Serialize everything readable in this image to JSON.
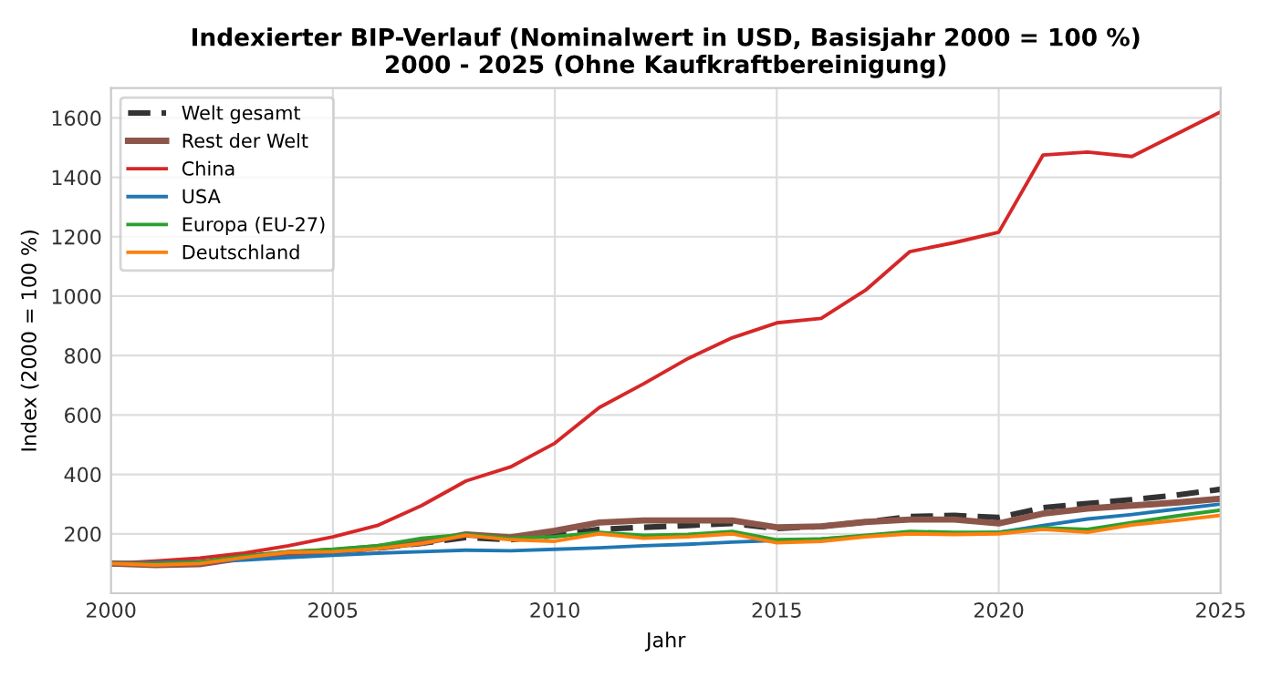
{
  "chart_data": {
    "type": "line",
    "title": "Indexierter BIP-Verlauf (Nominalwert in USD, Basisjahr 2000 = 100 %)\n2000 - 2025 (Ohne Kaufkraftbereinigung)",
    "xlabel": "Jahr",
    "ylabel": "Index (2000 = 100 %)",
    "x": [
      2000,
      2001,
      2002,
      2003,
      2004,
      2005,
      2006,
      2007,
      2008,
      2009,
      2010,
      2011,
      2012,
      2013,
      2014,
      2015,
      2016,
      2017,
      2018,
      2019,
      2020,
      2021,
      2022,
      2023,
      2024,
      2025
    ],
    "series": [
      {
        "name": "Welt gesamt",
        "color": "#333333",
        "line_style": "dashed",
        "values": [
          100,
          97,
          100,
          122,
          135,
          143,
          152,
          168,
          188,
          180,
          195,
          215,
          222,
          228,
          235,
          218,
          225,
          240,
          258,
          262,
          255,
          288,
          302,
          315,
          330,
          350
        ]
      },
      {
        "name": "Rest der Welt",
        "color": "#8c564b",
        "values": [
          100,
          95,
          98,
          120,
          135,
          142,
          155,
          170,
          198,
          188,
          210,
          238,
          245,
          245,
          245,
          222,
          225,
          240,
          248,
          248,
          235,
          268,
          285,
          295,
          305,
          318
        ]
      },
      {
        "name": "China",
        "color": "#d62728",
        "values": [
          100,
          108,
          118,
          135,
          160,
          190,
          228,
          295,
          378,
          425,
          505,
          625,
          705,
          790,
          860,
          910,
          925,
          1020,
          1150,
          1180,
          1215,
          1475,
          1485,
          1470,
          1545,
          1620
        ]
      },
      {
        "name": "USA",
        "color": "#1f77b4",
        "values": [
          100,
          103,
          106,
          112,
          120,
          128,
          135,
          140,
          145,
          143,
          148,
          153,
          160,
          165,
          172,
          178,
          183,
          192,
          203,
          200,
          205,
          228,
          250,
          265,
          283,
          300
        ]
      },
      {
        "name": "Europa (EU-27)",
        "color": "#2ca02c",
        "values": [
          100,
          100,
          105,
          125,
          140,
          148,
          160,
          185,
          198,
          185,
          190,
          205,
          195,
          198,
          208,
          180,
          183,
          195,
          208,
          205,
          205,
          220,
          215,
          238,
          260,
          280
        ]
      },
      {
        "name": "Deutschland",
        "color": "#ff7f0e",
        "values": [
          100,
          95,
          100,
          120,
          138,
          140,
          150,
          168,
          195,
          180,
          175,
          200,
          185,
          190,
          200,
          170,
          175,
          190,
          200,
          198,
          200,
          215,
          205,
          230,
          245,
          262
        ]
      }
    ],
    "xlim": [
      2000,
      2025
    ],
    "xticks": [
      2000,
      2005,
      2010,
      2015,
      2020,
      2025
    ],
    "ylim": [
      0,
      1700
    ],
    "yticks": [
      200,
      400,
      600,
      800,
      1000,
      1200,
      1400,
      1600
    ],
    "grid": true,
    "legend": "top left",
    "marker": "none"
  }
}
